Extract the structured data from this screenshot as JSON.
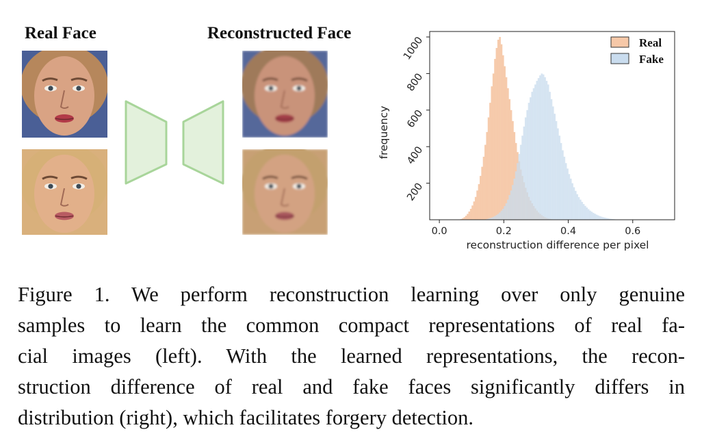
{
  "figure": {
    "left_titles": {
      "real": "Real Face",
      "reconstructed": "Reconstructed Face"
    },
    "faces": [
      {
        "row": "top",
        "kind": "real",
        "skin": "#d9a384",
        "hair": "#b6875c",
        "bg": "#4a5f96",
        "lips": "#b23a48"
      },
      {
        "row": "bottom",
        "kind": "real",
        "skin": "#e2b08a",
        "hair": "#d6b077",
        "bg": "#d9b07c",
        "lips": "#b85b62"
      },
      {
        "row": "top",
        "kind": "reconstructed",
        "skin": "#c9937a",
        "hair": "#9f7a5a",
        "bg": "#54689a",
        "lips": "#a44048"
      },
      {
        "row": "bottom",
        "kind": "reconstructed",
        "skin": "#d3a282",
        "hair": "#c3a06e",
        "bg": "#c8a074",
        "lips": "#a8575d"
      }
    ],
    "autoencoder_color": "#a8d59a",
    "autoencoder_fill": "#e3f1dc"
  },
  "chart_data": {
    "type": "histogram",
    "xlabel": "reconstruction difference per pixel",
    "ylabel": "frequency",
    "xlim": [
      -0.03,
      0.73
    ],
    "ylim": [
      0,
      1030
    ],
    "xticks": [
      "0.0",
      "0.2",
      "0.4",
      "0.6"
    ],
    "xtick_values": [
      0.0,
      0.2,
      0.4,
      0.6
    ],
    "yticks": [
      "200",
      "400",
      "600",
      "800",
      "1000"
    ],
    "ytick_values": [
      200,
      400,
      600,
      800,
      1000
    ],
    "legend_position": "top-right",
    "series": [
      {
        "name": "Real",
        "color": "#f6c8a8",
        "bin_start": 0.06,
        "bin_width": 0.005,
        "values": [
          2,
          4,
          8,
          14,
          22,
          32,
          45,
          60,
          78,
          100,
          125,
          160,
          195,
          240,
          290,
          345,
          410,
          480,
          560,
          640,
          730,
          800,
          880,
          940,
          985,
          1000,
          960,
          900,
          840,
          780,
          720,
          660,
          600,
          540,
          480,
          420,
          370,
          320,
          275,
          240,
          205,
          175,
          150,
          125,
          105,
          90,
          75,
          62,
          50,
          40,
          32,
          25,
          19,
          14,
          10,
          7,
          5,
          3,
          2,
          1
        ]
      },
      {
        "name": "Fake",
        "color": "#c9dcee",
        "bin_start": 0.14,
        "bin_width": 0.005,
        "values": [
          2,
          4,
          6,
          9,
          12,
          16,
          20,
          26,
          32,
          40,
          50,
          60,
          75,
          90,
          110,
          135,
          160,
          190,
          225,
          265,
          310,
          360,
          410,
          460,
          510,
          560,
          600,
          640,
          670,
          700,
          720,
          740,
          760,
          775,
          790,
          800,
          795,
          780,
          760,
          740,
          700,
          660,
          620,
          580,
          540,
          500,
          460,
          420,
          380,
          345,
          310,
          280,
          250,
          225,
          200,
          178,
          158,
          140,
          124,
          110,
          98,
          86,
          76,
          67,
          58,
          50,
          44,
          38,
          33,
          28,
          24,
          20,
          17,
          14,
          12,
          10,
          8,
          6,
          5,
          4,
          3,
          2,
          1
        ]
      }
    ]
  },
  "caption": {
    "lines": [
      "Figure 1.  We perform reconstruction learning over only genuine",
      "samples to learn the common compact representations of real fa-",
      "cial images (left).  With the learned representations, the recon-",
      "struction difference of real and fake faces significantly differs in",
      "distribution (right), which facilitates forgery detection."
    ]
  }
}
